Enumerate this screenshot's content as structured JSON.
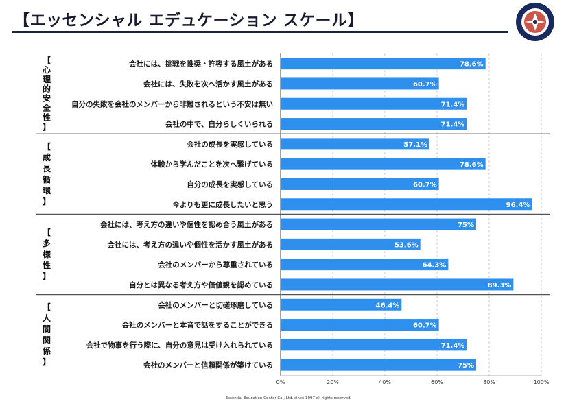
{
  "title": "【エッセンシャル エデュケーション スケール】",
  "copyright": "Essential Education Center Co., Ltd. since 1997 all rights reserved.",
  "colors": {
    "bar": "#2f8fed",
    "rule": "#1b2440",
    "logo_ring": "#1b2a5e",
    "logo_accent": "#c0392b"
  },
  "logo": {
    "icon": "circular-emblem-icon"
  },
  "chart_data": {
    "type": "bar",
    "orientation": "horizontal",
    "title": "【エッセンシャル エデュケーション スケール】",
    "xlim": [
      0,
      100
    ],
    "x_ticks": [
      "0%",
      "20%",
      "40%",
      "60%",
      "80%",
      "100%"
    ],
    "grid": true,
    "groups": [
      {
        "label": [
          "【",
          "心",
          "理",
          "的",
          "安",
          "全",
          "性",
          "】"
        ],
        "items": [
          {
            "label": "会社には、挑戦を推奨・許容する風土がある",
            "value": 78.6,
            "display": "78.6%"
          },
          {
            "label": "会社には、失敗を次へ活かす風土がある",
            "value": 60.7,
            "display": "60.7%"
          },
          {
            "label": "自分の失敗を会社のメンバーから非難されるという不安は無い",
            "value": 71.4,
            "display": "71.4%"
          },
          {
            "label": "会社の中で、自分らしくいられる",
            "value": 71.4,
            "display": "71.4%"
          }
        ]
      },
      {
        "label": [
          "【",
          "成",
          "長",
          "循",
          "環",
          "】"
        ],
        "items": [
          {
            "label": "会社の成長を実感している",
            "value": 57.1,
            "display": "57.1%"
          },
          {
            "label": "体験から学んだことを次へ繋げている",
            "value": 78.6,
            "display": "78.6%"
          },
          {
            "label": "自分の成長を実感している",
            "value": 60.7,
            "display": "60.7%"
          },
          {
            "label": "今よりも更に成長したいと思う",
            "value": 96.4,
            "display": "96.4%"
          }
        ]
      },
      {
        "label": [
          "【",
          "多",
          "様",
          "性",
          "】"
        ],
        "items": [
          {
            "label": "会社には、考え方の違いや個性を認め合う風土がある",
            "value": 75,
            "display": "75%"
          },
          {
            "label": "会社には、考え方の違いや個性を活かす風土がある",
            "value": 53.6,
            "display": "53.6%"
          },
          {
            "label": "会社のメンバーから尊重されている",
            "value": 64.3,
            "display": "64.3%"
          },
          {
            "label": "自分とは異なる考え方や価値観を認めている",
            "value": 89.3,
            "display": "89.3%"
          }
        ]
      },
      {
        "label": [
          "【",
          "人",
          "間",
          "関",
          "係",
          "】"
        ],
        "items": [
          {
            "label": "会社のメンバーと切磋琢磨している",
            "value": 46.4,
            "display": "46.4%"
          },
          {
            "label": "会社のメンバーと本音で話をすることができる",
            "value": 60.7,
            "display": "60.7%"
          },
          {
            "label": "会社で物事を行う際に、自分の意見は受け入れられている",
            "value": 71.4,
            "display": "71.4%"
          },
          {
            "label": "会社のメンバーと信頼関係が築けている",
            "value": 75,
            "display": "75%"
          }
        ]
      }
    ]
  }
}
